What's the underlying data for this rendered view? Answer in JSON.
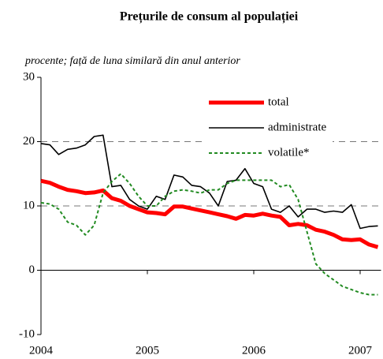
{
  "chart_data": {
    "type": "line",
    "title": "Prețurile de consum al populației",
    "subtitle": "procente; față de luna similară din anul anterior",
    "categories": [
      "2004",
      null,
      null,
      null,
      null,
      null,
      null,
      null,
      null,
      null,
      null,
      null,
      "2005",
      null,
      null,
      null,
      null,
      null,
      null,
      null,
      null,
      null,
      null,
      null,
      "2006",
      null,
      null,
      null,
      null,
      null,
      null,
      null,
      null,
      null,
      null,
      null,
      "2007",
      null,
      null
    ],
    "series": [
      {
        "name": "total",
        "color": "#ff0000",
        "style": "solid",
        "width": 5,
        "values": [
          13.9,
          13.6,
          13,
          12.5,
          12.3,
          12,
          12.1,
          12.4,
          11.2,
          10.8,
          10,
          9.5,
          9,
          8.9,
          8.7,
          9.9,
          9.9,
          9.6,
          9.3,
          9,
          8.7,
          8.4,
          8,
          8.6,
          8.5,
          8.8,
          8.5,
          8.3,
          7,
          7.2,
          7,
          6.3,
          6,
          5.5,
          4.8,
          4.7,
          4.8,
          4,
          3.6
        ]
      },
      {
        "name": "administrate",
        "color": "#000000",
        "style": "solid",
        "width": 1.6,
        "values": [
          19.7,
          19.5,
          18,
          18.8,
          19,
          19.5,
          20.8,
          21,
          13,
          13.2,
          11,
          10,
          9.5,
          11.5,
          11,
          14.8,
          14.5,
          13.2,
          13,
          12,
          10,
          13.8,
          14,
          15.8,
          13.5,
          13,
          9.5,
          9,
          10,
          8.3,
          9.5,
          9.5,
          9,
          9.2,
          9,
          10.2,
          6.5,
          6.8,
          6.9
        ]
      },
      {
        "name": "volatile*",
        "color": "#228b22",
        "style": "dotted",
        "width": 2,
        "values": [
          10.5,
          10.3,
          9.5,
          7.5,
          7,
          5.5,
          7,
          12,
          13.8,
          15,
          13.5,
          11.5,
          10,
          10,
          11.5,
          12.3,
          12.5,
          12.3,
          12,
          12.5,
          12.5,
          13.5,
          14,
          14,
          14,
          14,
          14,
          13,
          13.3,
          11,
          6,
          1,
          -0.5,
          -1.5,
          -2.5,
          -3,
          -3.5,
          -3.8,
          -3.8
        ]
      }
    ],
    "ylim": [
      -10,
      30
    ],
    "yticks": [
      -10,
      0,
      10,
      20,
      30
    ],
    "grid": true
  }
}
